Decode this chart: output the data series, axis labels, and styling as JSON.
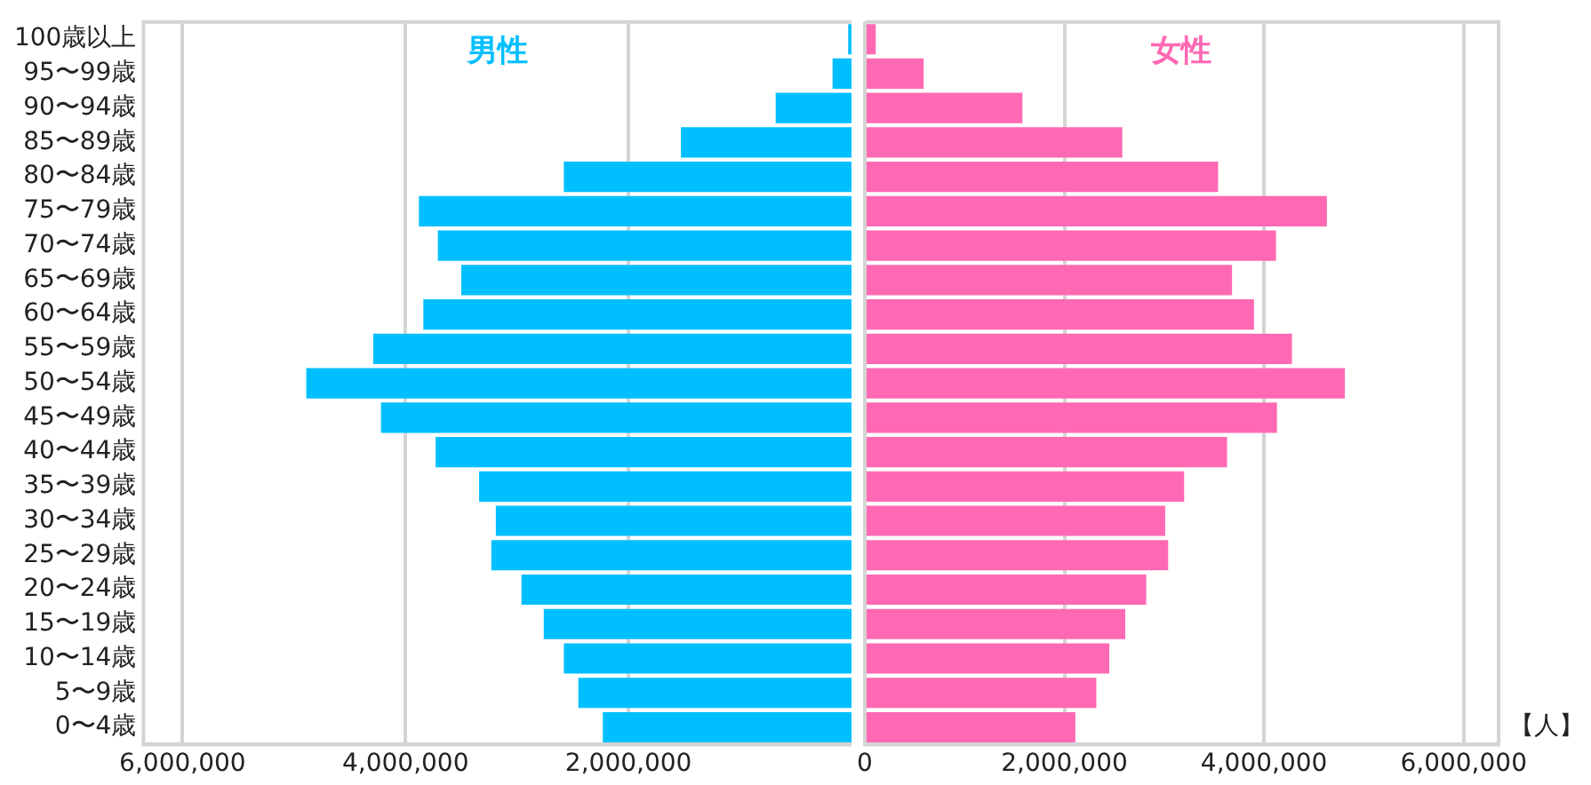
{
  "chart_data": [
    {
      "type": "bar",
      "orientation": "horizontal",
      "categories": [
        "100歳以上",
        "95〜99歳",
        "90〜94歳",
        "85〜89歳",
        "80〜84歳",
        "75〜79歳",
        "70〜74歳",
        "65〜69歳",
        "60〜64歳",
        "55〜59歳",
        "50〜54歳",
        "45〜49歳",
        "40〜44歳",
        "35〜39歳",
        "30〜34歳",
        "25〜29歳",
        "20〜24歳",
        "15〜19歳",
        "10〜14歳",
        "5〜9歳",
        "0〜4歳"
      ],
      "series": [
        {
          "name": "男性",
          "color": "#00bfff",
          "values": [
            30000,
            170000,
            680000,
            1530000,
            2580000,
            3880000,
            3710000,
            3500000,
            3840000,
            4290000,
            4890000,
            4220000,
            3730000,
            3340000,
            3190000,
            3230000,
            2960000,
            2760000,
            2580000,
            2450000,
            2230000
          ]
        }
      ],
      "xlim": [
        6350000,
        0
      ],
      "xticks": [
        {
          "value": 6000000,
          "label": "6,000,000"
        },
        {
          "value": 4000000,
          "label": "4,000,000"
        },
        {
          "value": 2000000,
          "label": "2,000,000"
        }
      ],
      "grid": "x",
      "legend": false
    },
    {
      "type": "bar",
      "orientation": "horizontal",
      "xlabel": "【人】",
      "categories": [
        null,
        null,
        null,
        null,
        null,
        null,
        null,
        null,
        null,
        null,
        null,
        null,
        null,
        null,
        null,
        null,
        null,
        null,
        null,
        null,
        null
      ],
      "series": [
        {
          "name": "女性",
          "color": "#ff69b4",
          "values": [
            110000,
            590000,
            1580000,
            2580000,
            3540000,
            4630000,
            4120000,
            3680000,
            3900000,
            4280000,
            4810000,
            4130000,
            3630000,
            3200000,
            3010000,
            3040000,
            2820000,
            2610000,
            2450000,
            2320000,
            2110000
          ]
        }
      ],
      "xlim": [
        0,
        6350000
      ],
      "xticks": [
        0,
        {
          "value": 2000000,
          "label": "2,000,000"
        },
        {
          "value": 4000000,
          "label": "4,000,000"
        },
        {
          "value": 6000000,
          "label": "6,000,000"
        }
      ],
      "grid": "x",
      "legend": false,
      "tick_labels": "x"
    }
  ]
}
